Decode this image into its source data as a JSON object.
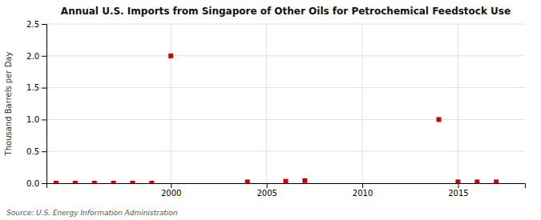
{
  "chart_data": {
    "type": "scatter",
    "title": "Annual U.S. Imports from Singapore of Other Oils for Petrochemical Feedstock Use",
    "ylabel": "Thousand Barrels per Day",
    "annotations": [
      "Source: U.S. Energy Information Administration"
    ],
    "x": [
      1994,
      1995,
      1996,
      1997,
      1998,
      1999,
      2000,
      2004,
      2006,
      2007,
      2014,
      2015,
      2016,
      2017
    ],
    "values": [
      0,
      0,
      0,
      0,
      0,
      0,
      2.0,
      0.02,
      0.03,
      0.04,
      1.0,
      0.02,
      0.02,
      0.02
    ],
    "color": "#cc0000",
    "marker": "square",
    "xlim": [
      1993.5,
      2018.5
    ],
    "xticks": [
      2000,
      2005,
      2010,
      2015
    ],
    "ylim": [
      0,
      2.5
    ],
    "yticks": [
      {
        "value": 0.0,
        "label": "0.0"
      },
      0.5,
      {
        "value": 1.0,
        "label": "1.0"
      },
      1.5,
      {
        "value": 2.0,
        "label": "2.0"
      },
      2.5
    ],
    "grid": true
  }
}
